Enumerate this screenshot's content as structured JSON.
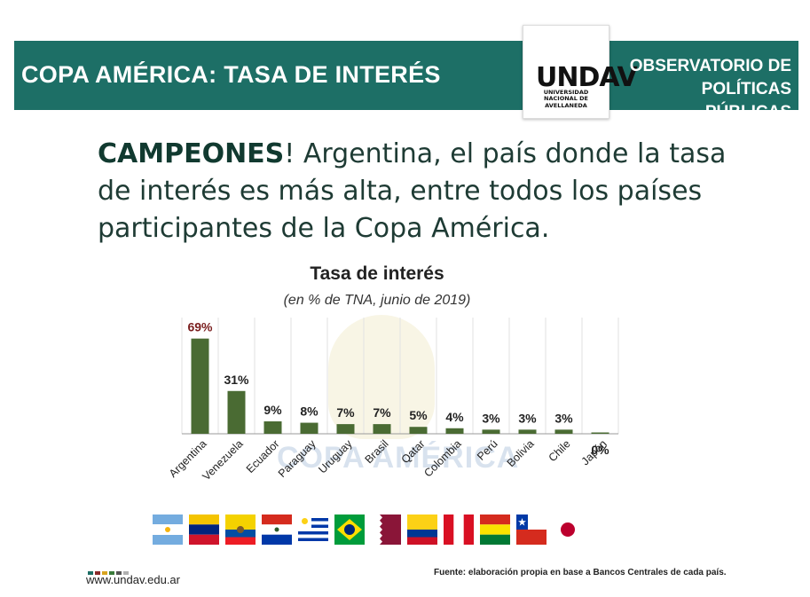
{
  "header": {
    "title": "COPA AMÉRICA: TASA DE INTERÉS",
    "logo_text": "UNDAV",
    "logo_subtitle": "UNIVERSIDAD NACIONAL DE AVELLANEDA",
    "observatory_line1": "OBSERVATORIO DE",
    "observatory_line2": "POLÍTICAS PÚBLICAS"
  },
  "headline": {
    "bold": "CAMPEONES",
    "rest": "! Argentina, el país donde la tasa de interés es más alta, entre todos los países participantes de la Copa América."
  },
  "watermark": "COPA AMÉRICA",
  "chart_data": {
    "type": "bar",
    "title": "Tasa de interés",
    "subtitle": "(en % de TNA, junio de 2019)",
    "categories": [
      "Argentina",
      "Venezuela",
      "Ecuador",
      "Paraguay",
      "Uruguay",
      "Brasil",
      "Qatar",
      "Colombia",
      "Perú",
      "Bolivia",
      "Chile",
      "Japón"
    ],
    "values": [
      69,
      31,
      9,
      8,
      7,
      7,
      5,
      4,
      3,
      3,
      3,
      0
    ],
    "value_labels": [
      "69%",
      "31%",
      "9%",
      "8%",
      "7%",
      "7%",
      "5%",
      "4%",
      "3%",
      "3%",
      "3%",
      "0%"
    ],
    "ylim": [
      0,
      72
    ],
    "grid": false,
    "colors": {
      "bar": "#4a6b33",
      "highlight_label": "#7a1e1e",
      "label": "#222222"
    }
  },
  "flags": [
    "argentina-flag",
    "venezuela-flag",
    "ecuador-flag",
    "paraguay-flag",
    "uruguay-flag",
    "brasil-flag",
    "qatar-flag",
    "colombia-flag",
    "peru-flag",
    "bolivia-flag",
    "chile-flag",
    "japon-flag"
  ],
  "footer": {
    "url": "www.undav.edu.ar",
    "source": "Fuente: elaboración propia en base a Bancos Centrales de cada país.",
    "dot_colors": [
      "#1d6f66",
      "#8a2b2b",
      "#d8a420",
      "#3a7a3a",
      "#555555",
      "#b0b0b0"
    ]
  },
  "colors": {
    "banner": "#1d6f66",
    "headline": "#1e3b34"
  }
}
